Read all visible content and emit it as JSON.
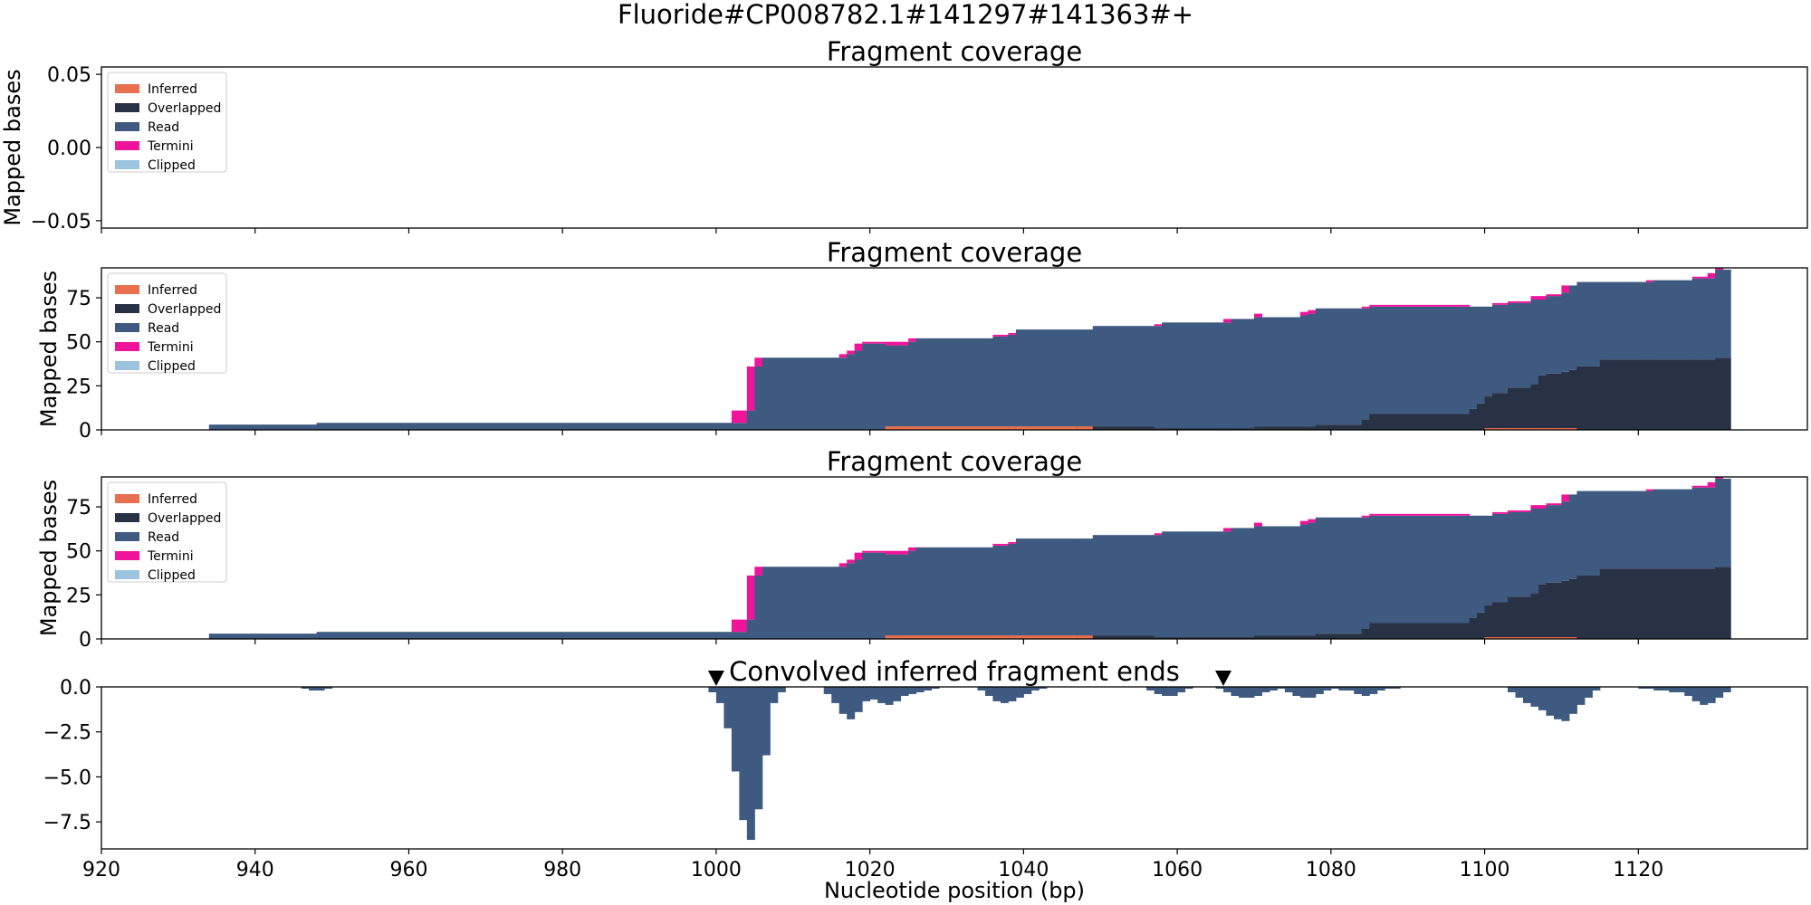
{
  "figure_title": "Fluoride#CP008782.1#141297#141363#+",
  "legend_entries": [
    {
      "label": "Inferred",
      "color": "#e8704e"
    },
    {
      "label": "Overlapped",
      "color": "#283244"
    },
    {
      "label": "Read",
      "color": "#3e5a80"
    },
    {
      "label": "Termini",
      "color": "#f0149a"
    },
    {
      "label": "Clipped",
      "color": "#9cc4de"
    }
  ],
  "colors": {
    "inferred": "#e8704e",
    "overlapped": "#283244",
    "read": "#3e5a80",
    "termini": "#f0149a",
    "clipped": "#9cc4de",
    "ends": "#3e5a80"
  },
  "chart_data": [
    {
      "type": "area",
      "title": "Fragment coverage",
      "ylabel": "Mapped bases",
      "xlim": [
        920,
        1142
      ],
      "ylim": [
        -0.055,
        0.055
      ],
      "yticks": [
        0.05,
        0.0,
        -0.05
      ],
      "ytick_labels": [
        "0.05",
        "0.00",
        "−0.05"
      ],
      "legend": "top-left",
      "series": []
    },
    {
      "type": "area",
      "title": "Fragment coverage",
      "ylabel": "Mapped bases",
      "xlim": [
        920,
        1142
      ],
      "ylim": [
        0,
        92
      ],
      "yticks": [
        0,
        25,
        50,
        75
      ],
      "ytick_labels": [
        "0",
        "25",
        "50",
        "75"
      ],
      "legend": "top-left",
      "stack": [
        {
          "x": [
            934,
            948
          ],
          "read": 3,
          "termini": 0,
          "overlapped": 0,
          "inferred": 0
        },
        {
          "x": [
            948,
            1000
          ],
          "read": 4,
          "termini": 0,
          "overlapped": 0,
          "inferred": 0
        },
        {
          "x": [
            1000,
            1002
          ],
          "read": 4,
          "termini": 0,
          "overlapped": 0,
          "inferred": 0
        },
        {
          "x": [
            1002,
            1004
          ],
          "read": 4,
          "termini": 7,
          "overlapped": 0,
          "inferred": 0
        },
        {
          "x": [
            1004,
            1005
          ],
          "read": 11,
          "termini": 25,
          "overlapped": 0,
          "inferred": 0
        },
        {
          "x": [
            1005,
            1006
          ],
          "read": 36,
          "termini": 5,
          "overlapped": 0,
          "inferred": 0
        },
        {
          "x": [
            1006,
            1016
          ],
          "read": 41,
          "termini": 0,
          "overlapped": 0,
          "inferred": 0
        },
        {
          "x": [
            1016,
            1017
          ],
          "read": 41,
          "termini": 2,
          "overlapped": 0,
          "inferred": 0
        },
        {
          "x": [
            1017,
            1018
          ],
          "read": 43,
          "termini": 2,
          "overlapped": 0,
          "inferred": 0
        },
        {
          "x": [
            1018,
            1019
          ],
          "read": 45,
          "termini": 4,
          "overlapped": 0,
          "inferred": 0
        },
        {
          "x": [
            1019,
            1022
          ],
          "read": 49,
          "termini": 1,
          "overlapped": 0,
          "inferred": 0
        },
        {
          "x": [
            1022,
            1025
          ],
          "read": 48,
          "termini": 2,
          "overlapped": 0,
          "inferred": 2
        },
        {
          "x": [
            1025,
            1026
          ],
          "read": 50,
          "termini": 2,
          "overlapped": 0,
          "inferred": 2
        },
        {
          "x": [
            1026,
            1036
          ],
          "read": 52,
          "termini": 0,
          "overlapped": 0,
          "inferred": 2
        },
        {
          "x": [
            1036,
            1038
          ],
          "read": 53,
          "termini": 1,
          "overlapped": 0,
          "inferred": 2
        },
        {
          "x": [
            1038,
            1039
          ],
          "read": 54,
          "termini": 1,
          "overlapped": 0,
          "inferred": 2
        },
        {
          "x": [
            1039,
            1047
          ],
          "read": 57,
          "termini": 0,
          "overlapped": 0,
          "inferred": 2
        },
        {
          "x": [
            1047,
            1049
          ],
          "read": 55,
          "termini": 0,
          "overlapped": 2,
          "inferred": 2
        },
        {
          "x": [
            1049,
            1057
          ],
          "read": 57,
          "termini": 0,
          "overlapped": 2,
          "inferred": 0
        },
        {
          "x": [
            1057,
            1058
          ],
          "read": 58,
          "termini": 1,
          "overlapped": 1,
          "inferred": 0
        },
        {
          "x": [
            1058,
            1066
          ],
          "read": 60,
          "termini": 0,
          "overlapped": 1,
          "inferred": 0
        },
        {
          "x": [
            1066,
            1067
          ],
          "read": 60,
          "termini": 2,
          "overlapped": 1,
          "inferred": 0
        },
        {
          "x": [
            1067,
            1070
          ],
          "read": 62,
          "termini": 0,
          "overlapped": 1,
          "inferred": 0
        },
        {
          "x": [
            1070,
            1071
          ],
          "read": 62,
          "termini": 2,
          "overlapped": 2,
          "inferred": 0
        },
        {
          "x": [
            1071,
            1076
          ],
          "read": 62,
          "termini": 0,
          "overlapped": 2,
          "inferred": 0
        },
        {
          "x": [
            1076,
            1077
          ],
          "read": 63,
          "termini": 2,
          "overlapped": 2,
          "inferred": 0
        },
        {
          "x": [
            1077,
            1078
          ],
          "read": 64,
          "termini": 2,
          "overlapped": 2,
          "inferred": 0
        },
        {
          "x": [
            1078,
            1084
          ],
          "read": 66,
          "termini": 0,
          "overlapped": 3,
          "inferred": 0
        },
        {
          "x": [
            1084,
            1085
          ],
          "read": 63,
          "termini": 1,
          "overlapped": 6,
          "inferred": 0
        },
        {
          "x": [
            1085,
            1098
          ],
          "read": 61,
          "termini": 1,
          "overlapped": 9,
          "inferred": 0
        },
        {
          "x": [
            1098,
            1099
          ],
          "read": 58,
          "termini": 0,
          "overlapped": 12,
          "inferred": 0
        },
        {
          "x": [
            1099,
            1100
          ],
          "read": 55,
          "termini": 0,
          "overlapped": 15,
          "inferred": 0
        },
        {
          "x": [
            1100,
            1101
          ],
          "read": 51,
          "termini": 0,
          "overlapped": 19,
          "inferred": 1
        },
        {
          "x": [
            1101,
            1103
          ],
          "read": 50,
          "termini": 1,
          "overlapped": 21,
          "inferred": 1
        },
        {
          "x": [
            1103,
            1106
          ],
          "read": 48,
          "termini": 1,
          "overlapped": 24,
          "inferred": 1
        },
        {
          "x": [
            1106,
            1107
          ],
          "read": 48,
          "termini": 2,
          "overlapped": 26,
          "inferred": 1
        },
        {
          "x": [
            1107,
            1108
          ],
          "read": 43,
          "termini": 2,
          "overlapped": 31,
          "inferred": 1
        },
        {
          "x": [
            1108,
            1110
          ],
          "read": 44,
          "termini": 1,
          "overlapped": 32,
          "inferred": 1
        },
        {
          "x": [
            1110,
            1111
          ],
          "read": 45,
          "termini": 4,
          "overlapped": 33,
          "inferred": 1
        },
        {
          "x": [
            1111,
            1112
          ],
          "read": 48,
          "termini": 0,
          "overlapped": 34,
          "inferred": 1
        },
        {
          "x": [
            1112,
            1115
          ],
          "read": 48,
          "termini": 0,
          "overlapped": 36,
          "inferred": 0
        },
        {
          "x": [
            1115,
            1121
          ],
          "read": 44,
          "termini": 0,
          "overlapped": 40,
          "inferred": 0
        },
        {
          "x": [
            1121,
            1122
          ],
          "read": 44,
          "termini": 1,
          "overlapped": 40,
          "inferred": 0
        },
        {
          "x": [
            1122,
            1127
          ],
          "read": 45,
          "termini": 0,
          "overlapped": 40,
          "inferred": 0
        },
        {
          "x": [
            1127,
            1129
          ],
          "read": 46,
          "termini": 1,
          "overlapped": 40,
          "inferred": 0
        },
        {
          "x": [
            1129,
            1130
          ],
          "read": 46,
          "termini": 3,
          "overlapped": 40,
          "inferred": 0
        },
        {
          "x": [
            1130,
            1131
          ],
          "read": 50,
          "termini": 1,
          "overlapped": 41,
          "inferred": 0
        },
        {
          "x": [
            1131,
            1132
          ],
          "read": 50,
          "termini": 0,
          "overlapped": 41,
          "inferred": 0
        }
      ]
    },
    {
      "type": "area",
      "title": "Fragment coverage",
      "ylabel": "Mapped bases",
      "xlim": [
        920,
        1142
      ],
      "ylim": [
        0,
        92
      ],
      "yticks": [
        0,
        25,
        50,
        75
      ],
      "ytick_labels": [
        "0",
        "25",
        "50",
        "75"
      ],
      "legend": "top-left",
      "same_as_previous": true
    },
    {
      "type": "bar",
      "title": "Convolved inferred fragment ends",
      "xlabel": "Nucleotide position (bp)",
      "xlim": [
        920,
        1142
      ],
      "ylim": [
        -9.0,
        0
      ],
      "yticks": [
        0.0,
        -2.5,
        -5.0,
        -7.5
      ],
      "ytick_labels": [
        "0.0",
        "−2.5",
        "−5.0",
        "−7.5"
      ],
      "xticks": [
        920,
        940,
        960,
        980,
        1000,
        1020,
        1040,
        1060,
        1080,
        1100,
        1120
      ],
      "markers_x": [
        1000,
        1066
      ],
      "x": [
        946,
        947,
        948,
        949,
        999,
        1000,
        1001,
        1002,
        1003,
        1004,
        1005,
        1006,
        1007,
        1008,
        1014,
        1015,
        1016,
        1017,
        1018,
        1019,
        1020,
        1021,
        1022,
        1023,
        1024,
        1025,
        1026,
        1027,
        1028,
        1034,
        1035,
        1036,
        1037,
        1038,
        1039,
        1040,
        1041,
        1042,
        1056,
        1057,
        1058,
        1059,
        1060,
        1061,
        1065,
        1066,
        1067,
        1068,
        1069,
        1070,
        1071,
        1072,
        1073,
        1074,
        1075,
        1076,
        1077,
        1078,
        1079,
        1080,
        1081,
        1082,
        1083,
        1084,
        1085,
        1086,
        1087,
        1088,
        1103,
        1104,
        1105,
        1106,
        1107,
        1108,
        1109,
        1110,
        1111,
        1112,
        1113,
        1114,
        1120,
        1121,
        1122,
        1123,
        1124,
        1125,
        1126,
        1127,
        1128,
        1129,
        1130,
        1131
      ],
      "values": [
        -0.1,
        -0.2,
        -0.2,
        -0.1,
        -0.3,
        -0.9,
        -2.3,
        -4.7,
        -7.4,
        -8.5,
        -6.8,
        -3.8,
        -0.9,
        -0.3,
        -0.4,
        -0.9,
        -1.5,
        -1.8,
        -1.4,
        -0.8,
        -0.7,
        -0.9,
        -1.0,
        -0.8,
        -0.5,
        -0.4,
        -0.3,
        -0.2,
        -0.1,
        -0.2,
        -0.5,
        -0.8,
        -0.9,
        -0.8,
        -0.6,
        -0.4,
        -0.2,
        -0.1,
        -0.2,
        -0.4,
        -0.5,
        -0.5,
        -0.3,
        -0.1,
        -0.1,
        -0.3,
        -0.5,
        -0.6,
        -0.6,
        -0.5,
        -0.3,
        -0.2,
        -0.1,
        -0.3,
        -0.5,
        -0.6,
        -0.6,
        -0.4,
        -0.2,
        -0.1,
        -0.2,
        -0.2,
        -0.4,
        -0.5,
        -0.4,
        -0.2,
        -0.1,
        -0.1,
        -0.3,
        -0.6,
        -0.9,
        -1.1,
        -1.3,
        -1.6,
        -1.8,
        -1.9,
        -1.5,
        -1.0,
        -0.6,
        -0.2,
        -0.1,
        -0.1,
        -0.2,
        -0.2,
        -0.3,
        -0.3,
        -0.5,
        -0.8,
        -1.0,
        -0.9,
        -0.6,
        -0.3
      ]
    }
  ]
}
